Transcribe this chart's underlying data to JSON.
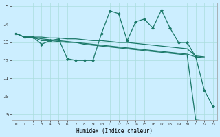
{
  "xlabel": "Humidex (Indice chaleur)",
  "background_color": "#cceeff",
  "grid_color": "#aadddd",
  "line_color": "#1a7868",
  "xlim": [
    -0.5,
    23.5
  ],
  "ylim": [
    8.7,
    15.2
  ],
  "yticks": [
    9,
    10,
    11,
    12,
    13,
    14,
    15
  ],
  "xticks": [
    0,
    1,
    2,
    3,
    4,
    5,
    6,
    7,
    8,
    9,
    10,
    11,
    12,
    13,
    14,
    15,
    16,
    17,
    18,
    19,
    20,
    21,
    22,
    23
  ],
  "series": [
    {
      "x": [
        0,
        1,
        2,
        3,
        4,
        5,
        6,
        7,
        8,
        9,
        10,
        11,
        12,
        13,
        14,
        15,
        16,
        17,
        18,
        19,
        20,
        21,
        22,
        23
      ],
      "y": [
        13.5,
        13.3,
        13.3,
        12.9,
        13.1,
        13.2,
        12.1,
        12.0,
        12.0,
        12.0,
        13.5,
        14.75,
        14.6,
        13.1,
        14.15,
        14.3,
        13.8,
        14.8,
        13.8,
        13.0,
        13.0,
        12.2,
        10.35,
        9.45
      ],
      "has_markers": true
    },
    {
      "x": [
        0,
        1,
        2,
        3,
        4,
        5,
        6,
        7,
        8,
        9,
        10,
        11,
        12,
        13,
        14,
        15,
        16,
        17,
        18,
        19,
        20,
        21,
        22
      ],
      "y": [
        13.5,
        13.3,
        13.3,
        13.3,
        13.25,
        13.25,
        13.2,
        13.2,
        13.15,
        13.1,
        13.1,
        13.05,
        13.0,
        13.0,
        12.95,
        12.9,
        12.85,
        12.8,
        12.75,
        12.7,
        12.65,
        12.25,
        12.2
      ],
      "has_markers": false
    },
    {
      "x": [
        0,
        1,
        2,
        3,
        4,
        5,
        6,
        7,
        8,
        9,
        10,
        11,
        12,
        13,
        14,
        15,
        16,
        17,
        18,
        19,
        20,
        21,
        22
      ],
      "y": [
        13.5,
        13.3,
        13.3,
        13.2,
        13.15,
        13.1,
        13.05,
        13.0,
        12.95,
        12.9,
        12.85,
        12.8,
        12.75,
        12.7,
        12.65,
        12.6,
        12.55,
        12.5,
        12.45,
        12.4,
        12.35,
        12.2,
        12.15
      ],
      "has_markers": false
    },
    {
      "x": [
        0,
        1,
        2,
        3,
        4,
        5,
        6,
        7,
        8,
        9,
        10,
        11,
        12,
        13,
        14,
        15,
        16,
        17,
        18,
        19,
        20,
        21,
        22
      ],
      "y": [
        13.5,
        13.3,
        13.3,
        13.1,
        13.1,
        13.05,
        13.0,
        13.0,
        12.9,
        12.85,
        12.8,
        12.75,
        12.7,
        12.65,
        12.6,
        12.55,
        12.5,
        12.45,
        12.4,
        12.35,
        12.3,
        8.7,
        8.65
      ],
      "has_markers": false
    }
  ]
}
